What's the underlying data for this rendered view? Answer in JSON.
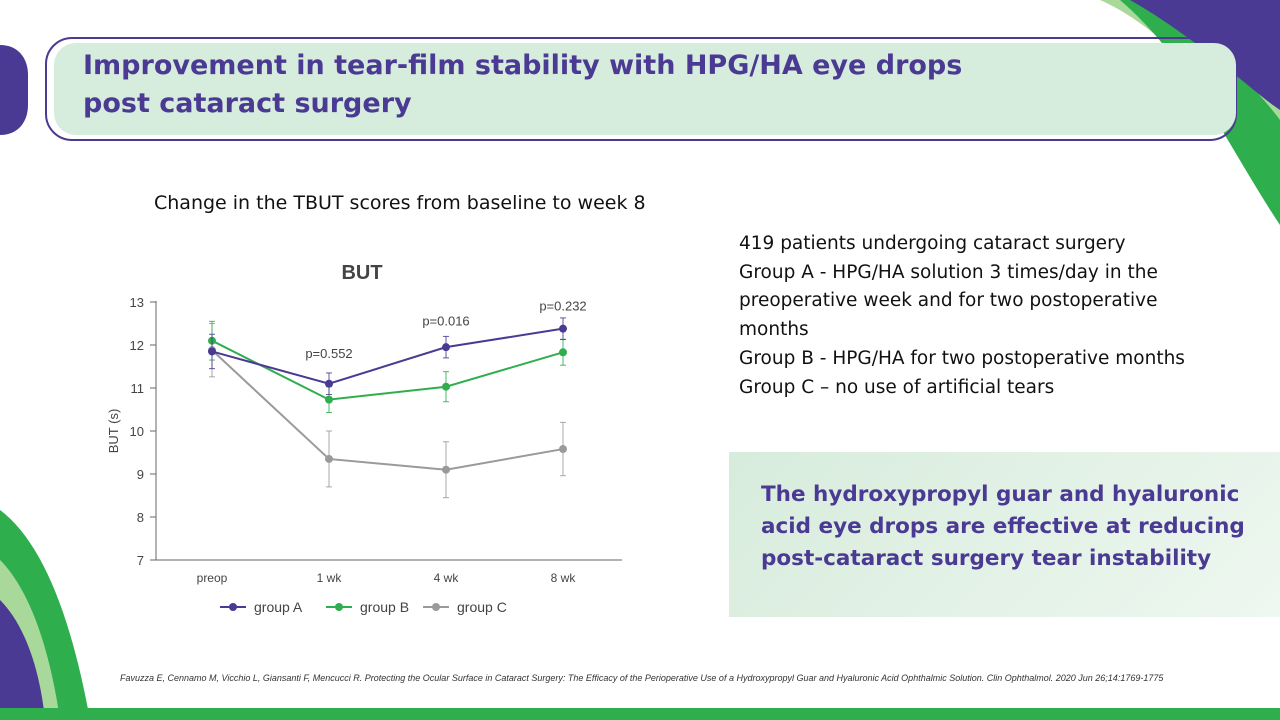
{
  "slide": {
    "title_line1": "Improvement in tear-film stability with HPG/HA eye drops",
    "title_line2": "post cataract surgery",
    "subtitle": "Change in the TBUT scores from baseline to week 8",
    "info_lines": [
      "419 patients undergoing cataract surgery",
      "Group A - HPG/HA solution 3 times/day in the preoperative week and for two postoperative months",
      "Group B - HPG/HA for two postoperative months",
      "Group C – no use of artificial tears"
    ],
    "conclusion": "The hydroxypropyl guar and hyaluronic acid eye drops are effective at reducing post-cataract surgery tear instability",
    "reference": "Favuzza E, Cennamo M, Vicchio L, Giansanti F, Mencucci R. Protecting the Ocular Surface in Cataract Surgery: The Efficacy of the Perioperative Use of a Hydroxypropyl Guar and Hyaluronic Acid Ophthalmic Solution. Clin Ophthalmol. 2020 Jun 26;14:1769-1775"
  },
  "colors": {
    "accent_purple": "#4b3a93",
    "accent_green": "#2fae4e",
    "band_green": "#d6ecdc"
  },
  "chart_data": {
    "type": "line",
    "title": "BUT",
    "xlabel": "",
    "ylabel": "BUT (s)",
    "categories": [
      "preop",
      "1 wk",
      "4 wk",
      "8 wk"
    ],
    "ylim": [
      7,
      13
    ],
    "yticks": [
      7,
      8,
      9,
      10,
      11,
      12,
      13
    ],
    "legend_position": "bottom",
    "series": [
      {
        "name": "group A",
        "color": "#4b3a93",
        "values": [
          11.85,
          11.1,
          11.95,
          12.38
        ],
        "errors": [
          0.4,
          0.25,
          0.25,
          0.25
        ]
      },
      {
        "name": "group B",
        "color": "#2fae4e",
        "values": [
          12.1,
          10.73,
          11.03,
          11.83
        ],
        "errors": [
          0.45,
          0.3,
          0.35,
          0.3
        ]
      },
      {
        "name": "group C",
        "color": "#9a9a9a",
        "values": [
          11.88,
          9.35,
          9.1,
          9.58
        ],
        "errors": [
          0.62,
          0.65,
          0.65,
          0.62
        ]
      }
    ],
    "annotations": [
      {
        "text": "p=0.552",
        "category": "1 wk",
        "y": 11.7
      },
      {
        "text": "p=0.016",
        "category": "4 wk",
        "y": 12.45
      },
      {
        "text": "p=0.232",
        "category": "8 wk",
        "y": 12.8
      }
    ]
  }
}
